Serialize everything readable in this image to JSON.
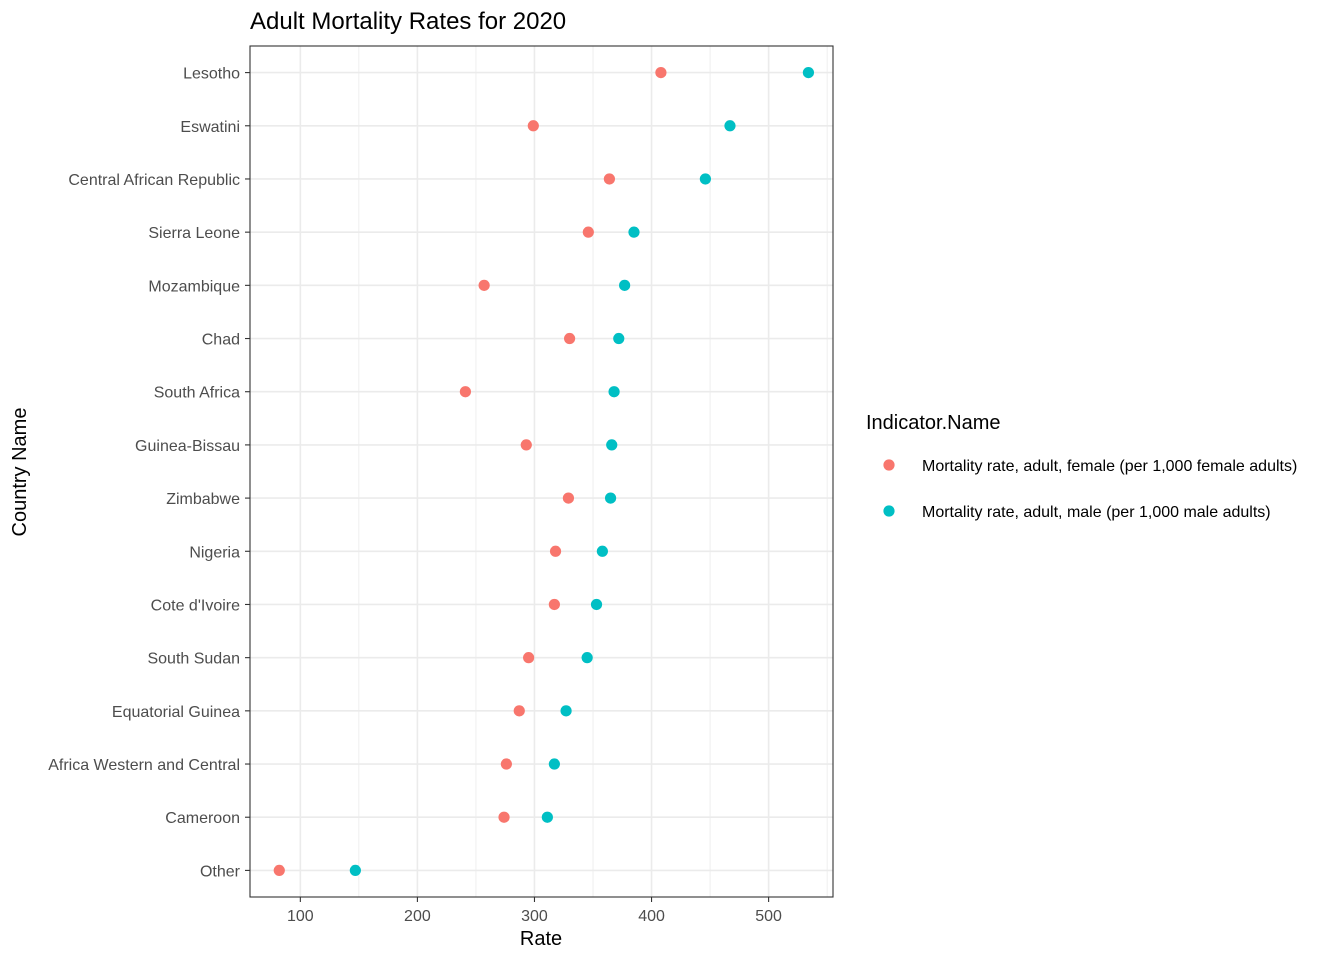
{
  "chart_data": {
    "type": "scatter",
    "title": "Adult Mortality Rates for 2020",
    "xlabel": "Rate",
    "ylabel": "Country Name",
    "xlim": [
      57,
      555
    ],
    "x_ticks": [
      100,
      200,
      300,
      400,
      500
    ],
    "categories": [
      "Lesotho",
      "Eswatini",
      "Central African Republic",
      "Sierra Leone",
      "Mozambique",
      "Chad",
      "South Africa",
      "Guinea-Bissau",
      "Zimbabwe",
      "Nigeria",
      "Cote d'Ivoire",
      "South Sudan",
      "Equatorial Guinea",
      "Africa Western and Central",
      "Cameroon",
      "Other"
    ],
    "series": [
      {
        "name": "Mortality rate, adult, female (per 1,000 female adults)",
        "color": "#F8766D",
        "values": [
          408,
          299,
          364,
          346,
          257,
          330,
          241,
          293,
          329,
          318,
          317,
          295,
          287,
          276,
          274,
          82
        ]
      },
      {
        "name": "Mortality rate, adult, male (per 1,000 male adults)",
        "color": "#00BFC4",
        "values": [
          534,
          467,
          446,
          385,
          377,
          372,
          368,
          366,
          365,
          358,
          353,
          345,
          327,
          317,
          311,
          147
        ]
      }
    ],
    "legend_title": "Indicator.Name",
    "legend_position": "right",
    "grid": true
  }
}
